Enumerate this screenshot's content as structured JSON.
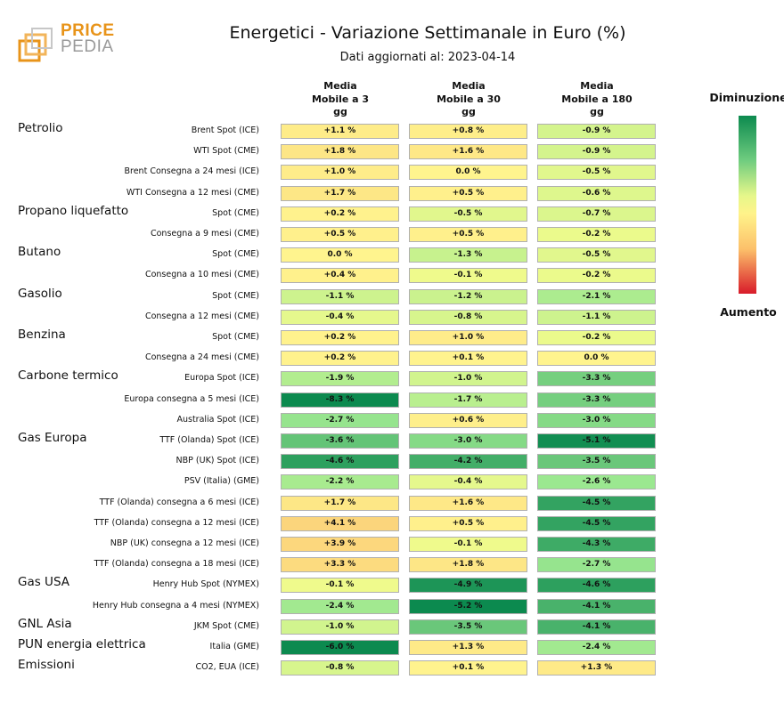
{
  "logo": {
    "word1": "PRICE",
    "word2": "PEDIA",
    "icon": "pricepedia-logo-icon"
  },
  "chart_data": {
    "type": "table",
    "title": "Energetici - Variazione Settimanale in Euro (%)",
    "subtitle": "Dati aggiornati al: 2023-04-14",
    "columns": [
      "Media\nMobile a 3\ngg",
      "Media\nMobile a 30\ngg",
      "Media\nMobile a 180\ngg"
    ],
    "legend": {
      "top": "Diminuzione",
      "bottom": "Aumento",
      "colors": [
        "#0c8a4f",
        "#6fcc7f",
        "#e6f78a",
        "#fff38a",
        "#fcc06a",
        "#d81b2a"
      ]
    },
    "groups": [
      {
        "name": "Petrolio",
        "rows": [
          {
            "label": "Brent Spot (ICE)",
            "values": [
              1.1,
              0.8,
              -0.9
            ],
            "texts": [
              "+1.1 %",
              "+0.8 %",
              "-0.9 %"
            ]
          },
          {
            "label": "WTI Spot (CME)",
            "values": [
              1.8,
              1.6,
              -0.9
            ],
            "texts": [
              "+1.8 %",
              "+1.6 %",
              "-0.9 %"
            ]
          },
          {
            "label": "Brent Consegna a 24 mesi (ICE)",
            "values": [
              1.0,
              0.0,
              -0.5
            ],
            "texts": [
              "+1.0 %",
              "0.0 %",
              "-0.5 %"
            ]
          },
          {
            "label": "WTI Consegna a 12 mesi (CME)",
            "values": [
              1.7,
              0.5,
              -0.6
            ],
            "texts": [
              "+1.7 %",
              "+0.5 %",
              "-0.6 %"
            ]
          }
        ]
      },
      {
        "name": "Propano liquefatto",
        "rows": [
          {
            "label": "Spot (CME)",
            "values": [
              0.2,
              -0.5,
              -0.7
            ],
            "texts": [
              "+0.2 %",
              "-0.5 %",
              "-0.7 %"
            ]
          },
          {
            "label": "Consegna a 9 mesi (CME)",
            "values": [
              0.5,
              0.5,
              -0.2
            ],
            "texts": [
              "+0.5 %",
              "+0.5 %",
              "-0.2 %"
            ]
          }
        ]
      },
      {
        "name": "Butano",
        "rows": [
          {
            "label": "Spot (CME)",
            "values": [
              0.0,
              -1.3,
              -0.5
            ],
            "texts": [
              "0.0 %",
              "-1.3 %",
              "-0.5 %"
            ]
          },
          {
            "label": "Consegna a 10 mesi (CME)",
            "values": [
              0.4,
              -0.1,
              -0.2
            ],
            "texts": [
              "+0.4 %",
              "-0.1 %",
              "-0.2 %"
            ]
          }
        ]
      },
      {
        "name": "Gasolio",
        "rows": [
          {
            "label": "Spot (CME)",
            "values": [
              -1.1,
              -1.2,
              -2.1
            ],
            "texts": [
              "-1.1 %",
              "-1.2 %",
              "-2.1 %"
            ]
          },
          {
            "label": "Consegna a 12 mesi (CME)",
            "values": [
              -0.4,
              -0.8,
              -1.1
            ],
            "texts": [
              "-0.4 %",
              "-0.8 %",
              "-1.1 %"
            ]
          }
        ]
      },
      {
        "name": "Benzina",
        "rows": [
          {
            "label": "Spot (CME)",
            "values": [
              0.2,
              1.0,
              -0.2
            ],
            "texts": [
              "+0.2 %",
              "+1.0 %",
              "-0.2 %"
            ]
          },
          {
            "label": "Consegna a 24 mesi (CME)",
            "values": [
              0.2,
              0.1,
              0.0
            ],
            "texts": [
              "+0.2 %",
              "+0.1 %",
              "0.0 %"
            ]
          }
        ]
      },
      {
        "name": "Carbone termico",
        "rows": [
          {
            "label": "Europa Spot (ICE)",
            "values": [
              -1.9,
              -1.0,
              -3.3
            ],
            "texts": [
              "-1.9 %",
              "-1.0 %",
              "-3.3 %"
            ]
          },
          {
            "label": "Europa consegna a 5 mesi (ICE)",
            "values": [
              -8.3,
              -1.7,
              -3.3
            ],
            "texts": [
              "-8.3 %",
              "-1.7 %",
              "-3.3 %"
            ]
          },
          {
            "label": "Australia Spot (ICE)",
            "values": [
              -2.7,
              0.6,
              -3.0
            ],
            "texts": [
              "-2.7 %",
              "+0.6 %",
              "-3.0 %"
            ]
          }
        ]
      },
      {
        "name": "Gas Europa",
        "rows": [
          {
            "label": "TTF (Olanda) Spot (ICE)",
            "values": [
              -3.6,
              -3.0,
              -5.1
            ],
            "texts": [
              "-3.6 %",
              "-3.0 %",
              "-5.1 %"
            ]
          },
          {
            "label": "NBP (UK) Spot (ICE)",
            "values": [
              -4.6,
              -4.2,
              -3.5
            ],
            "texts": [
              "-4.6 %",
              "-4.2 %",
              "-3.5 %"
            ]
          },
          {
            "label": "PSV (Italia) (GME)",
            "values": [
              -2.2,
              -0.4,
              -2.6
            ],
            "texts": [
              "-2.2 %",
              "-0.4 %",
              "-2.6 %"
            ]
          },
          {
            "label": "TTF (Olanda) consegna a 6 mesi (ICE)",
            "values": [
              1.7,
              1.6,
              -4.5
            ],
            "texts": [
              "+1.7 %",
              "+1.6 %",
              "-4.5 %"
            ]
          },
          {
            "label": "TTF (Olanda) consegna a 12 mesi (ICE)",
            "values": [
              4.1,
              0.5,
              -4.5
            ],
            "texts": [
              "+4.1 %",
              "+0.5 %",
              "-4.5 %"
            ]
          },
          {
            "label": "NBP (UK) consegna a 12 mesi (ICE)",
            "values": [
              3.9,
              -0.1,
              -4.3
            ],
            "texts": [
              "+3.9 %",
              "-0.1 %",
              "-4.3 %"
            ]
          },
          {
            "label": "TTF (Olanda) consegna a 18 mesi (ICE)",
            "values": [
              3.3,
              1.8,
              -2.7
            ],
            "texts": [
              "+3.3 %",
              "+1.8 %",
              "-2.7 %"
            ]
          }
        ]
      },
      {
        "name": "Gas USA",
        "rows": [
          {
            "label": "Henry Hub Spot (NYMEX)",
            "values": [
              -0.1,
              -4.9,
              -4.6
            ],
            "texts": [
              "-0.1 %",
              "-4.9 %",
              "-4.6 %"
            ]
          },
          {
            "label": "Henry Hub consegna a 4 mesi (NYMEX)",
            "values": [
              -2.4,
              -5.2,
              -4.1
            ],
            "texts": [
              "-2.4 %",
              "-5.2 %",
              "-4.1 %"
            ]
          }
        ]
      },
      {
        "name": "GNL Asia",
        "rows": [
          {
            "label": "JKM Spot (CME)",
            "values": [
              -1.0,
              -3.5,
              -4.1
            ],
            "texts": [
              "-1.0 %",
              "-3.5 %",
              "-4.1 %"
            ]
          }
        ]
      },
      {
        "name": "PUN energia elettrica",
        "rows": [
          {
            "label": "Italia (GME)",
            "values": [
              -6.0,
              1.3,
              -2.4
            ],
            "texts": [
              "-6.0 %",
              "+1.3 %",
              "-2.4 %"
            ]
          }
        ]
      },
      {
        "name": "Emissioni",
        "rows": [
          {
            "label": "CO2, EUA (ICE)",
            "values": [
              -0.8,
              0.1,
              1.3
            ],
            "texts": [
              "-0.8 %",
              "+0.1 %",
              "+1.3 %"
            ]
          }
        ]
      }
    ]
  }
}
